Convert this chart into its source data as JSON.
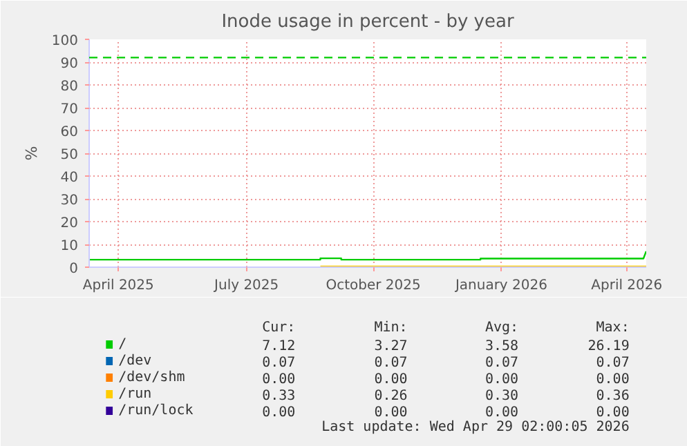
{
  "chart_data": {
    "type": "line",
    "title": "Inode usage in percent - by year",
    "ylabel": "%",
    "xlim": [
      "2025-03-25",
      "2026-04-29"
    ],
    "xticks": [
      {
        "value": "2025-04-15",
        "label": "April 2025"
      },
      {
        "value": "2025-07-16",
        "label": "July 2025"
      },
      {
        "value": "2025-10-15",
        "label": "October 2025"
      },
      {
        "value": "2026-01-15",
        "label": "January 2026"
      },
      {
        "value": "2026-04-15",
        "label": "April 2026"
      }
    ],
    "ylim": [
      0,
      100
    ],
    "yticks": [
      0,
      10,
      20,
      30,
      40,
      50,
      60,
      70,
      80,
      90,
      100
    ],
    "grid": true,
    "legend": "bottom",
    "series": [
      {
        "name": "/",
        "color": "#00cc00",
        "x": [
          "2025-03-25",
          "2025-09-07",
          "2025-09-07",
          "2025-09-22",
          "2025-09-22",
          "2025-12-31",
          "2025-12-31",
          "2026-04-27",
          "2026-04-29"
        ],
        "values": [
          3.3,
          3.3,
          3.9,
          3.9,
          3.3,
          3.3,
          3.8,
          3.8,
          7
        ]
      },
      {
        "name": "/dev",
        "color": "#0066b3"
      },
      {
        "name": "/dev/shm",
        "color": "#ff8000"
      },
      {
        "name": "/run",
        "color": "#ffcc00",
        "x": [
          "2025-09-07",
          "2026-04-29"
        ],
        "values": [
          0.3,
          0.3
        ]
      },
      {
        "name": "/run/lock",
        "color": "#330099"
      }
    ],
    "ref_lines": [
      {
        "axis": "y",
        "value": 92,
        "color": "#00cc00",
        "line_style": "dashed"
      }
    ],
    "annotations": [
      "Cur:",
      "Min:",
      "Avg:",
      "Max:",
      "7.12",
      "3.27",
      "3.58",
      "26.19",
      "0.07",
      "0.07",
      "0.07",
      "0.07",
      "0.00",
      "0.00",
      "0.00",
      "0.00",
      "0.33",
      "0.26",
      "0.30",
      "0.36",
      "0.00",
      "0.00",
      "0.00",
      "0.00",
      "Last update: Wed Apr 29 02:00:05 2026"
    ]
  }
}
